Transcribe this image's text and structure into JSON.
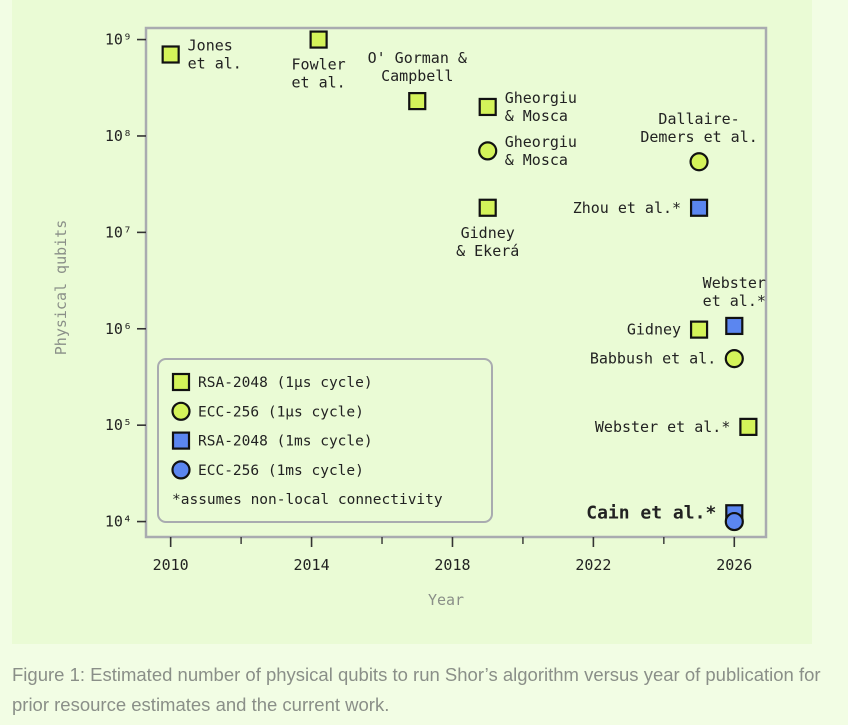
{
  "caption": "Figure 1: Estimated number of physical qubits to run Shor’s algorithm versus year of publication for prior resource estimates and the current work.",
  "colors": {
    "background": "#f2fde4",
    "panel": "#eafbd5",
    "frame": "#a9abb0",
    "lime": "#d4f35a",
    "blue": "#5b86f0",
    "marker_stroke": "#111111",
    "axis_label": "#8a8f88"
  },
  "chart_data": {
    "type": "scatter",
    "xlabel": "Year",
    "ylabel": "Physical qubits",
    "xlim": [
      2009.3,
      2026.9
    ],
    "ylim_log10": [
      3.84,
      9.12
    ],
    "y_scale": "log",
    "grid": false,
    "legend_position": "bottom-left",
    "x_ticks_major": [
      2010,
      2014,
      2018,
      2022,
      2026
    ],
    "x_ticks_minor": [
      2012,
      2016,
      2020,
      2024
    ],
    "y_tick_labels": [
      {
        "exp": 4,
        "label": "10⁴"
      },
      {
        "exp": 5,
        "label": "10⁵"
      },
      {
        "exp": 6,
        "label": "10⁶"
      },
      {
        "exp": 7,
        "label": "10⁷"
      },
      {
        "exp": 8,
        "label": "10⁸"
      },
      {
        "exp": 9,
        "label": "10⁹"
      }
    ],
    "series": [
      {
        "name": "RSA-2048 (1μs cycle)",
        "marker": "square",
        "color": "#d4f35a"
      },
      {
        "name": "ECC-256 (1μs cycle)",
        "marker": "circle",
        "color": "#d4f35a"
      },
      {
        "name": "RSA-2048 (1ms cycle)",
        "marker": "square",
        "color": "#5b86f0"
      },
      {
        "name": "ECC-256 (1ms cycle)",
        "marker": "circle",
        "color": "#5b86f0"
      }
    ],
    "legend_note": "*assumes non-local connectivity",
    "points": [
      {
        "series": 0,
        "x": 2010.0,
        "y": 700000000.0,
        "label": "Jones\net al.",
        "label_pos": "right",
        "bold": false
      },
      {
        "series": 0,
        "x": 2014.2,
        "y": 1000000000.0,
        "label": "Fowler\net al.",
        "label_pos": "below",
        "bold": false
      },
      {
        "series": 0,
        "x": 2017.0,
        "y": 230000000.0,
        "label": "O' Gorman &\nCampbell",
        "label_pos": "above",
        "bold": false
      },
      {
        "series": 0,
        "x": 2019.0,
        "y": 200000000.0,
        "label": "Gheorgiu\n& Mosca",
        "label_pos": "right",
        "bold": false
      },
      {
        "series": 1,
        "x": 2019.0,
        "y": 70000000.0,
        "label": "Gheorgiu\n& Mosca",
        "label_pos": "right",
        "bold": false
      },
      {
        "series": 0,
        "x": 2019.0,
        "y": 18000000.0,
        "label": "Gidney\n& Ekerá",
        "label_pos": "below",
        "bold": false
      },
      {
        "series": 1,
        "x": 2025.0,
        "y": 54000000.0,
        "label": "Dallaire-\nDemers et al.",
        "label_pos": "above",
        "bold": false
      },
      {
        "series": 2,
        "x": 2025.0,
        "y": 18000000.0,
        "label": "Zhou et al.*",
        "label_pos": "left",
        "bold": false
      },
      {
        "series": 0,
        "x": 2025.0,
        "y": 980000.0,
        "label": "Gidney",
        "label_pos": "left",
        "bold": false
      },
      {
        "series": 2,
        "x": 2026.0,
        "y": 1070000.0,
        "label": "Webster\net al.*",
        "label_pos": "above",
        "bold": false
      },
      {
        "series": 1,
        "x": 2026.0,
        "y": 490000.0,
        "label": "Babbush et al.",
        "label_pos": "left",
        "bold": false
      },
      {
        "series": 0,
        "x": 2026.4,
        "y": 96000.0,
        "label": "Webster et al.*",
        "label_pos": "left",
        "bold": false
      },
      {
        "series": 2,
        "x": 2026.0,
        "y": 12200.0,
        "label": "Cain et al.*",
        "label_pos": "left",
        "bold": true
      },
      {
        "series": 3,
        "x": 2026.0,
        "y": 10000.0,
        "label": "",
        "label_pos": "none",
        "bold": false
      }
    ]
  }
}
